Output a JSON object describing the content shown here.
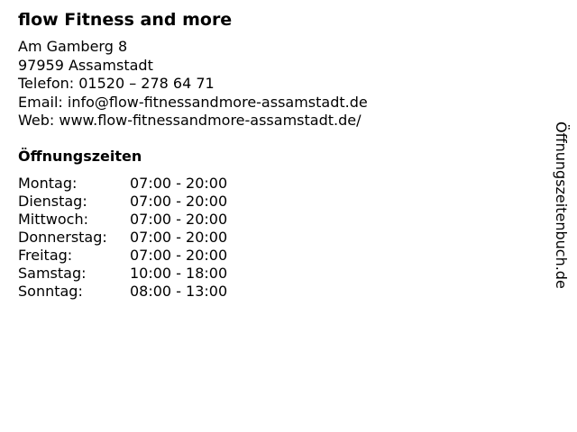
{
  "business": {
    "name": "flow Fitness and more",
    "address_lines": [
      "Am Gamberg 8",
      "97959 Assamstadt",
      "Telefon: 01520 – 278 64 71",
      "Email: info@flow-fitnessandmore-assamstadt.de",
      "Web: www.flow-fitnessandmore-assamstadt.de/"
    ]
  },
  "hours": {
    "title": "Öffnungszeiten",
    "rows": [
      {
        "day": "Montag:",
        "time": "07:00 - 20:00"
      },
      {
        "day": "Dienstag:",
        "time": "07:00 - 20:00"
      },
      {
        "day": "Mittwoch:",
        "time": "07:00 - 20:00"
      },
      {
        "day": "Donnerstag:",
        "time": "07:00 - 20:00"
      },
      {
        "day": "Freitag:",
        "time": "07:00 - 20:00"
      },
      {
        "day": "Samstag:",
        "time": "10:00 - 18:00"
      },
      {
        "day": "Sonntag:",
        "time": "08:00 - 13:00"
      }
    ]
  },
  "brand": "Öffnungszeitenbuch.de"
}
